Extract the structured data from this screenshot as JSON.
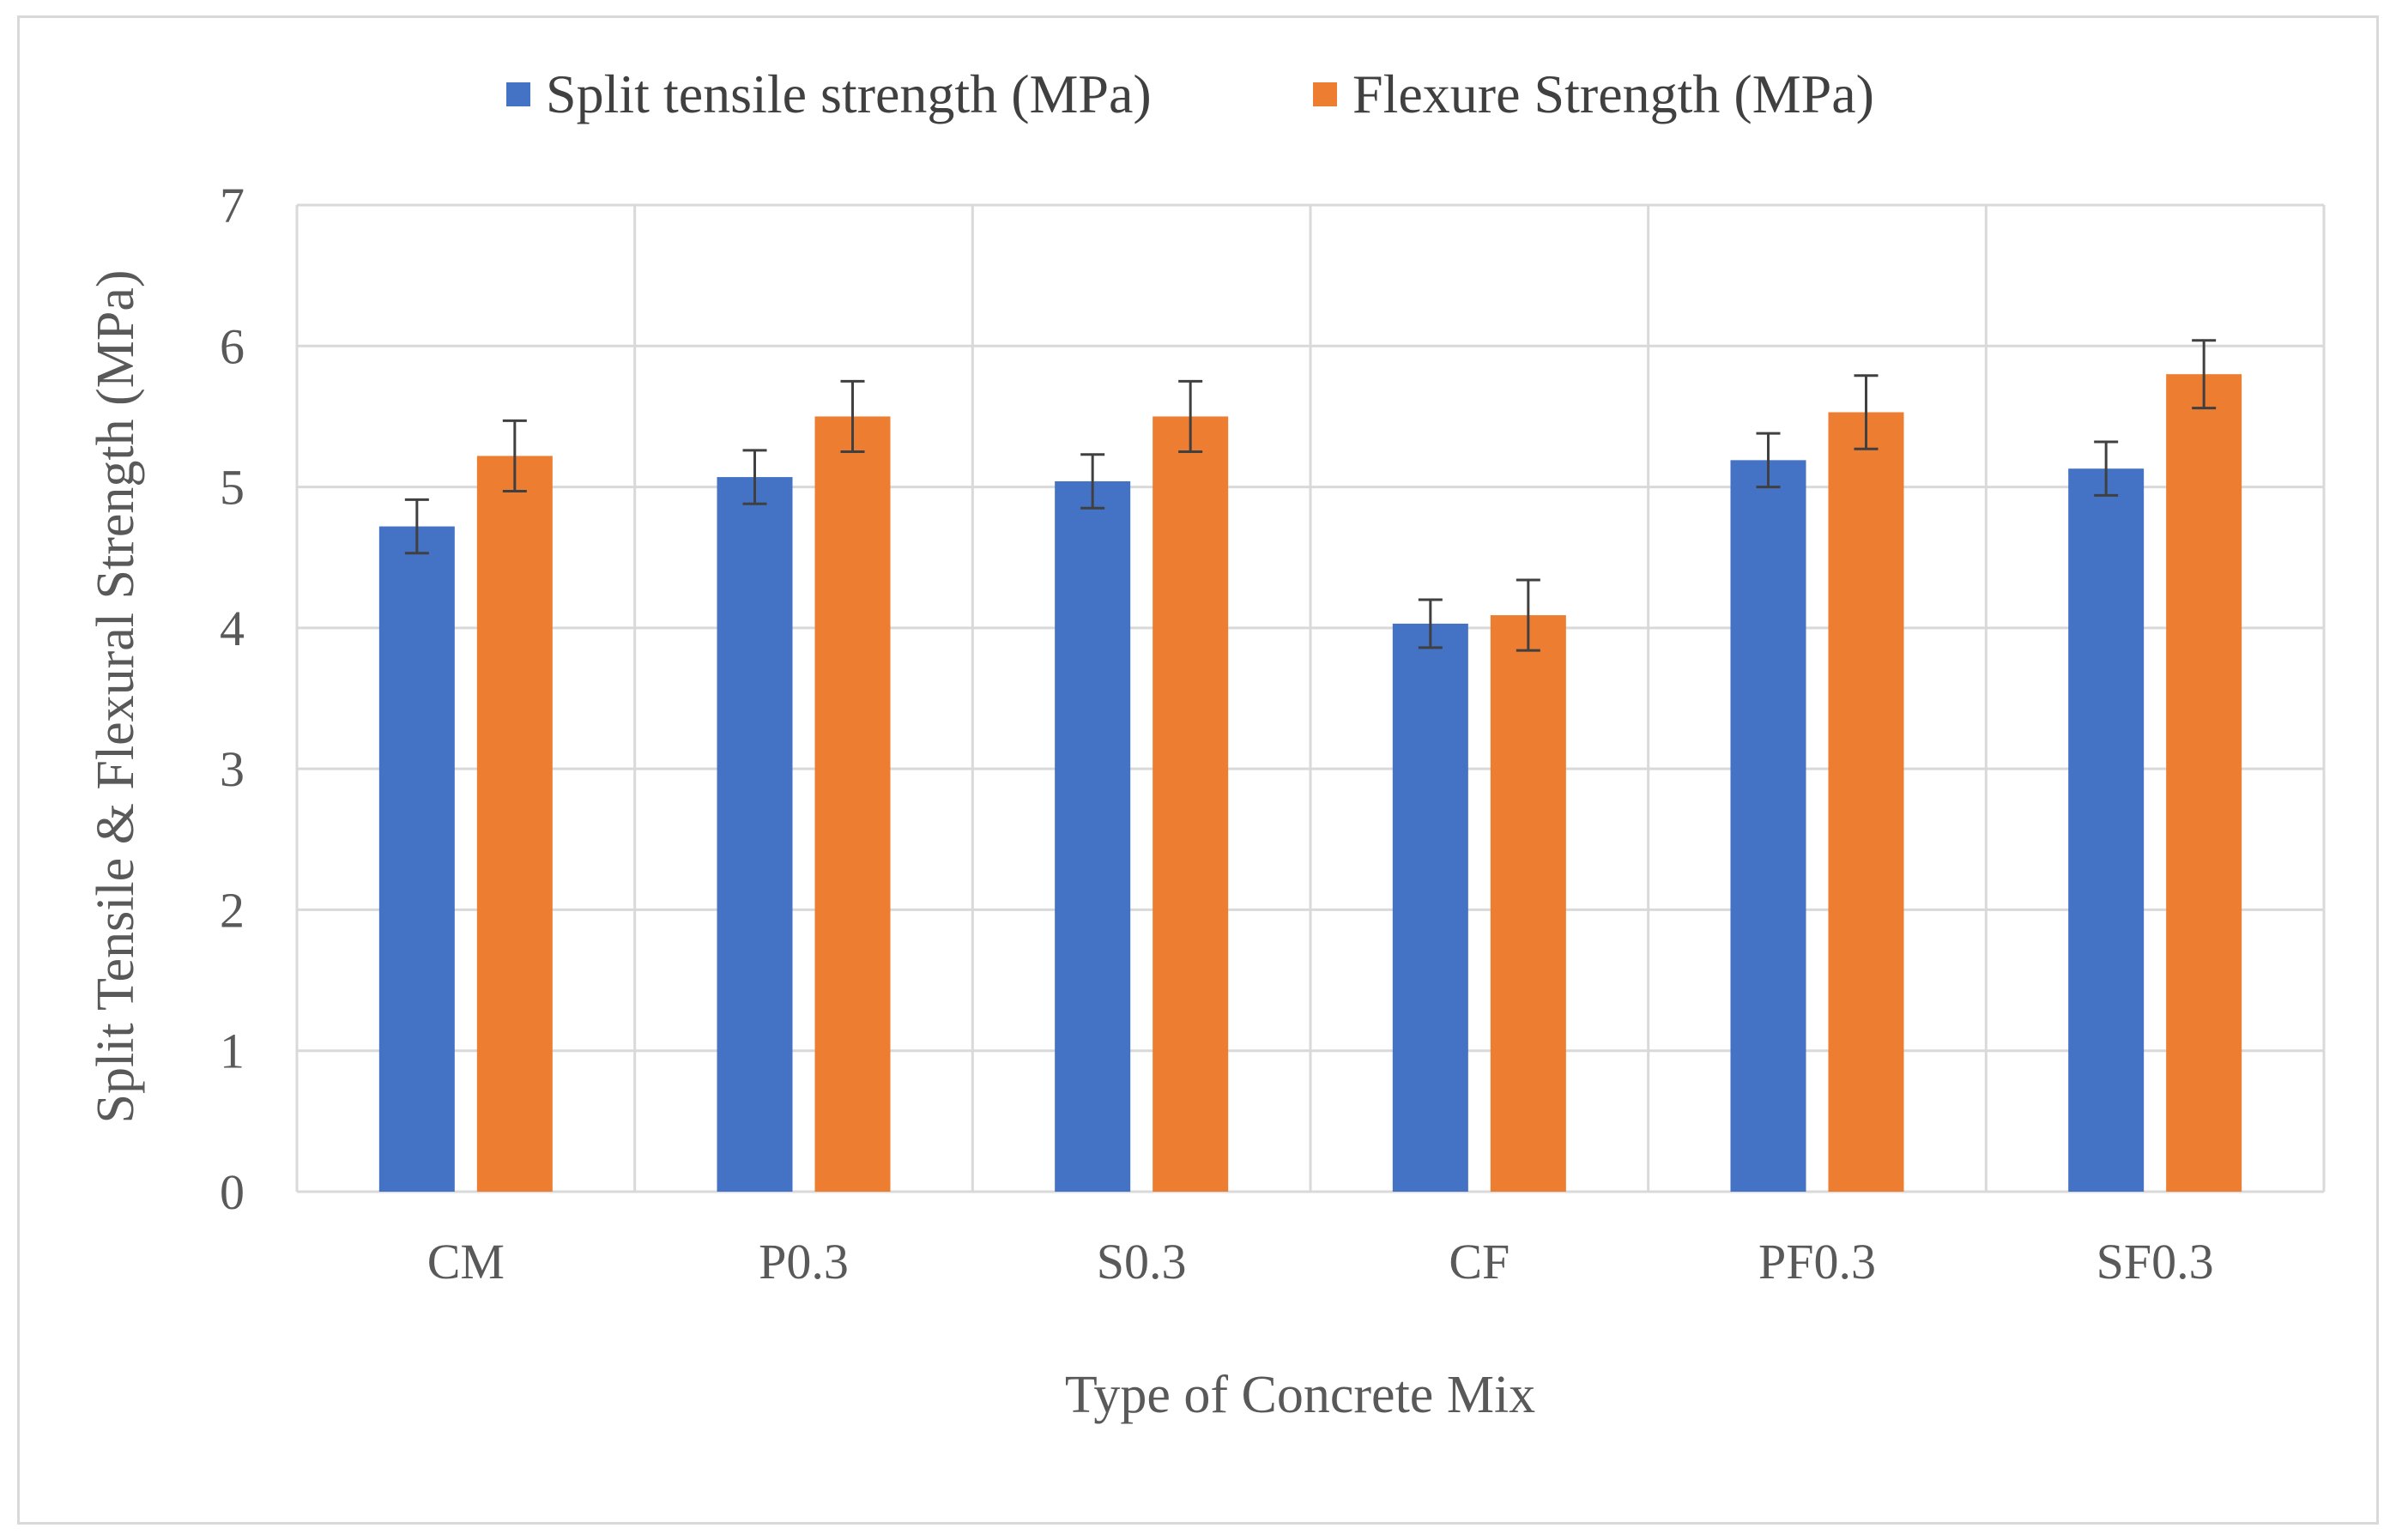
{
  "chart_data": {
    "type": "bar",
    "title": "",
    "xlabel": "Type of Concrete Mix",
    "ylabel": "Split  Tensile  & Flexural  Strength (MPa)",
    "ylim": [
      0,
      7
    ],
    "yticks": [
      0,
      1,
      2,
      3,
      4,
      5,
      6,
      7
    ],
    "grid": true,
    "legend_position": "top",
    "categories": [
      "CM",
      "P0.3",
      "S0.3",
      "CF",
      "PF0.3",
      "SF0.3"
    ],
    "series": [
      {
        "name": "Split tensile strength (MPa)",
        "color": "#4472c4",
        "values": [
          4.72,
          5.07,
          5.04,
          4.03,
          5.19,
          5.13
        ],
        "errors": [
          0.19,
          0.19,
          0.19,
          0.17,
          0.19,
          0.19
        ]
      },
      {
        "name": "Flexure Strength (MPa)",
        "color": "#ed7d31",
        "values": [
          5.22,
          5.5,
          5.5,
          4.09,
          5.53,
          5.8
        ],
        "errors": [
          0.25,
          0.25,
          0.25,
          0.25,
          0.26,
          0.24
        ]
      }
    ]
  }
}
